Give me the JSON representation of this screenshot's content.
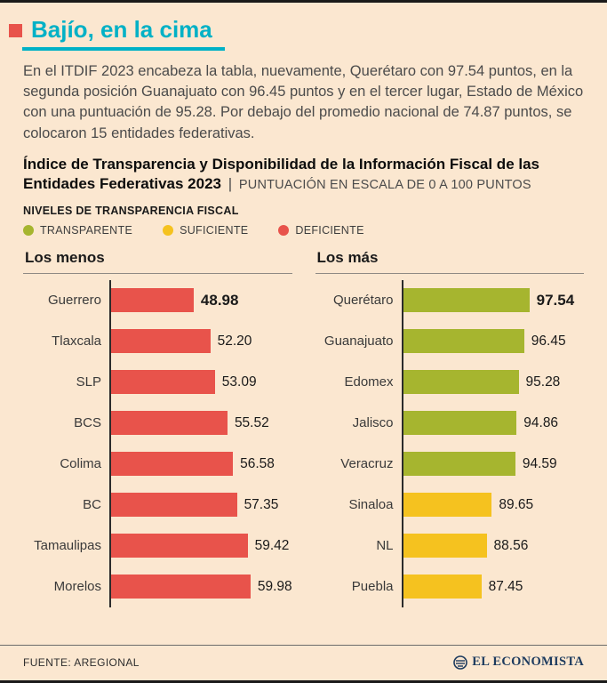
{
  "meta": {
    "background": "#fbe7d0",
    "accent_cyan": "#00b1c6",
    "red": "#e8534b",
    "green": "#a6b52f",
    "yellow": "#f5c21f",
    "navy": "#1c3a5e"
  },
  "header": {
    "title": "Bajío, en la cima",
    "intro": "En el ITDIF 2023 encabeza la tabla, nuevamente, Querétaro con 97.54 puntos, en la segunda posición Guanajuato con 96.45 puntos y en el tercer lugar, Estado de México con una puntuación de 95.28. Por debajo del promedio nacional de 74.87 puntos, se colocaron 15 entidades federativas.",
    "subtitle_bold": "Índice de Transparencia y Disponibilidad de la Información Fiscal de las Entidades Federativas 2023",
    "subtitle_separator": "|",
    "subtitle_note": "PUNTUACIÓN EN ESCALA DE 0 A 100 PUNTOS"
  },
  "legend": {
    "title": "NIVELES DE TRANSPARENCIA FISCAL",
    "items": [
      {
        "label": "TRANSPARENTE",
        "color": "#a6b52f"
      },
      {
        "label": "SUFICIENTE",
        "color": "#f5c21f"
      },
      {
        "label": "DEFICIENTE",
        "color": "#e8534b"
      }
    ]
  },
  "chart_data": [
    {
      "type": "bar",
      "orientation": "horizontal",
      "title": "Los menos",
      "categories": [
        "Guerrero",
        "Tlaxcala",
        "SLP",
        "BCS",
        "Colima",
        "BC",
        "Tamaulipas",
        "Morelos"
      ],
      "values": [
        48.98,
        52.2,
        53.09,
        55.52,
        56.58,
        57.35,
        59.42,
        59.98
      ],
      "value_labels": [
        "48.98",
        "52.20",
        "53.09",
        "55.52",
        "56.58",
        "57.35",
        "59.42",
        "59.98"
      ],
      "colors": [
        "#e8534b",
        "#e8534b",
        "#e8534b",
        "#e8534b",
        "#e8534b",
        "#e8534b",
        "#e8534b",
        "#e8534b"
      ],
      "value_axis_range": [
        0,
        100
      ],
      "render_scale": {
        "min": 33,
        "max": 68
      },
      "first_value_bold": true,
      "grid": false,
      "legend_position": "none"
    },
    {
      "type": "bar",
      "orientation": "horizontal",
      "title": "Los más",
      "categories": [
        "Querétaro",
        "Guanajuato",
        "Edomex",
        "Jalisco",
        "Veracruz",
        "Sinaloa",
        "NL",
        "Puebla"
      ],
      "values": [
        97.54,
        96.45,
        95.28,
        94.86,
        94.59,
        89.65,
        88.56,
        87.45
      ],
      "value_labels": [
        "97.54",
        "96.45",
        "95.28",
        "94.86",
        "94.59",
        "89.65",
        "88.56",
        "87.45"
      ],
      "colors": [
        "#a6b52f",
        "#a6b52f",
        "#a6b52f",
        "#a6b52f",
        "#a6b52f",
        "#f5c21f",
        "#f5c21f",
        "#f5c21f"
      ],
      "value_axis_range": [
        0,
        100
      ],
      "render_scale": {
        "min": 71,
        "max": 109
      },
      "first_value_bold": true,
      "grid": false,
      "legend_position": "none"
    }
  ],
  "footer": {
    "source": "FUENTE: AREGIONAL",
    "brand": "EL ECONOMISTA"
  }
}
